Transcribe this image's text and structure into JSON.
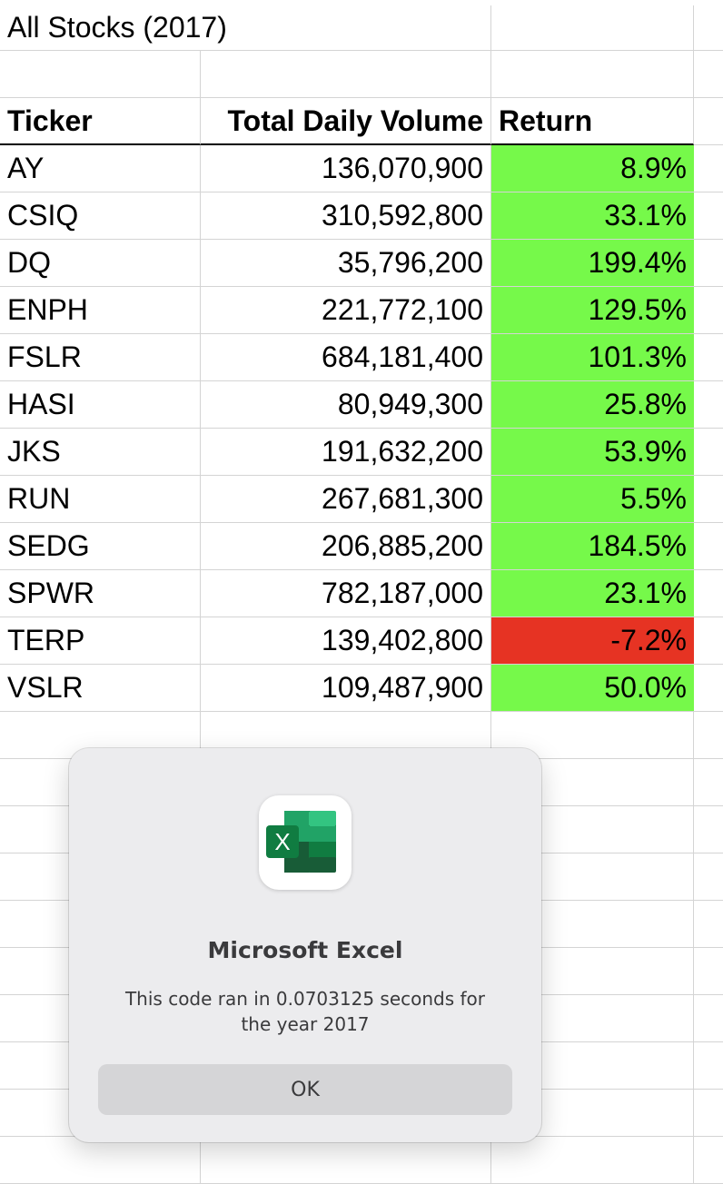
{
  "sheet": {
    "title": "All Stocks (2017)",
    "headers": {
      "ticker": "Ticker",
      "volume": "Total Daily Volume",
      "return": "Return"
    },
    "rows": [
      {
        "ticker": "AY",
        "volume": "136,070,900",
        "return": "8.9%",
        "status": "positive"
      },
      {
        "ticker": "CSIQ",
        "volume": "310,592,800",
        "return": "33.1%",
        "status": "positive"
      },
      {
        "ticker": "DQ",
        "volume": "35,796,200",
        "return": "199.4%",
        "status": "positive"
      },
      {
        "ticker": "ENPH",
        "volume": "221,772,100",
        "return": "129.5%",
        "status": "positive"
      },
      {
        "ticker": "FSLR",
        "volume": "684,181,400",
        "return": "101.3%",
        "status": "positive"
      },
      {
        "ticker": "HASI",
        "volume": "80,949,300",
        "return": "25.8%",
        "status": "positive"
      },
      {
        "ticker": "JKS",
        "volume": "191,632,200",
        "return": "53.9%",
        "status": "positive"
      },
      {
        "ticker": "RUN",
        "volume": "267,681,300",
        "return": "5.5%",
        "status": "positive"
      },
      {
        "ticker": "SEDG",
        "volume": "206,885,200",
        "return": "184.5%",
        "status": "positive"
      },
      {
        "ticker": "SPWR",
        "volume": "782,187,000",
        "return": "23.1%",
        "status": "positive"
      },
      {
        "ticker": "TERP",
        "volume": "139,402,800",
        "return": "-7.2%",
        "status": "negative"
      },
      {
        "ticker": "VSLR",
        "volume": "109,487,900",
        "return": "50.0%",
        "status": "positive"
      }
    ],
    "colors": {
      "positive": "#76f94a",
      "negative": "#e63323",
      "gridline": "#d4d4d4"
    }
  },
  "dialog": {
    "app_icon": "excel-icon",
    "title": "Microsoft Excel",
    "message": "This code ran in 0.0703125 seconds for the year 2017",
    "ok_label": "OK"
  }
}
